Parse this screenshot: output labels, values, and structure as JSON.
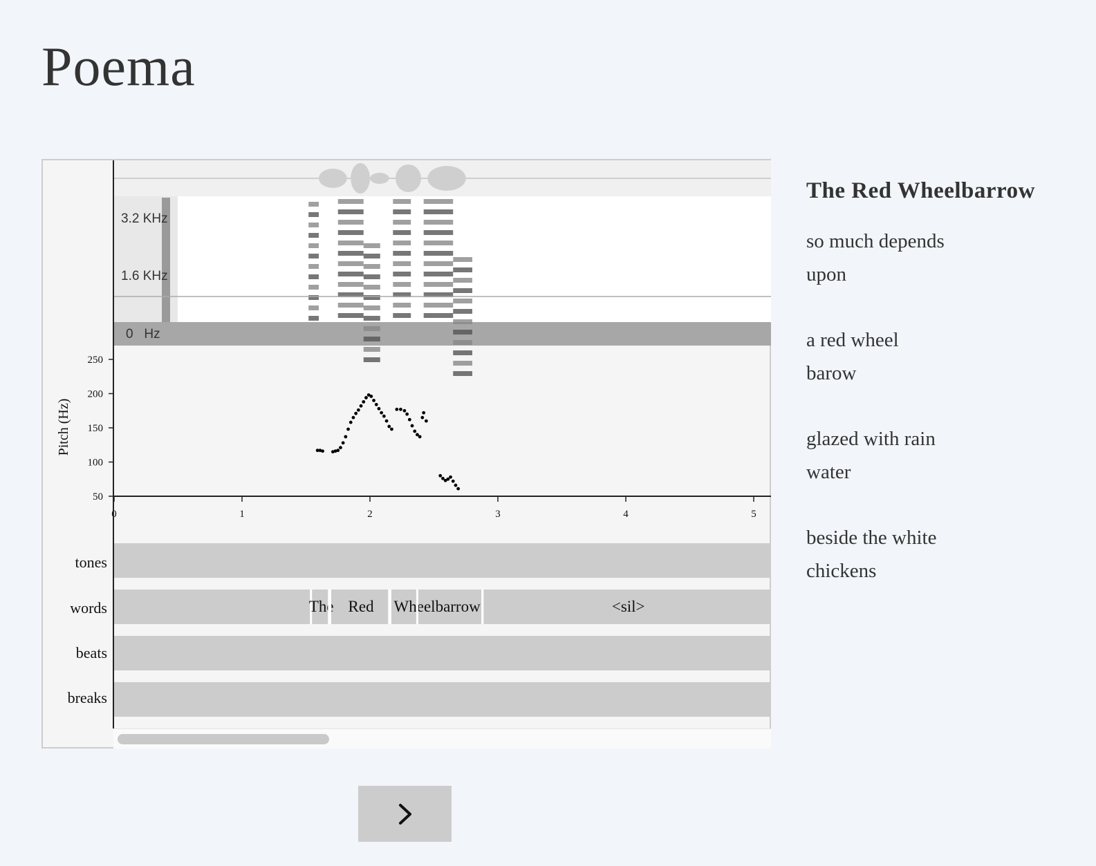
{
  "app": {
    "title": "Poema"
  },
  "spectrogram": {
    "freq_labels": [
      "3.2 KHz",
      "1.6 KHz",
      "0   Hz"
    ]
  },
  "pitch_plot": {
    "ylabel": "Pitch (Hz)",
    "yticks": [
      "250",
      "200",
      "150",
      "100",
      "50"
    ],
    "xticks": [
      "0",
      "1",
      "2",
      "3",
      "4",
      "5"
    ],
    "ylim": [
      50,
      250
    ],
    "xlim": [
      0,
      5.15
    ],
    "points": [
      [
        1.59,
        117
      ],
      [
        1.61,
        117
      ],
      [
        1.63,
        116
      ],
      [
        1.71,
        115
      ],
      [
        1.73,
        116
      ],
      [
        1.75,
        117
      ],
      [
        1.77,
        121
      ],
      [
        1.79,
        128
      ],
      [
        1.81,
        137
      ],
      [
        1.83,
        148
      ],
      [
        1.85,
        158
      ],
      [
        1.87,
        165
      ],
      [
        1.89,
        171
      ],
      [
        1.91,
        176
      ],
      [
        1.93,
        182
      ],
      [
        1.95,
        188
      ],
      [
        1.97,
        194
      ],
      [
        1.99,
        198
      ],
      [
        2.01,
        196
      ],
      [
        2.03,
        190
      ],
      [
        2.05,
        184
      ],
      [
        2.07,
        178
      ],
      [
        2.09,
        172
      ],
      [
        2.11,
        167
      ],
      [
        2.13,
        160
      ],
      [
        2.15,
        152
      ],
      [
        2.17,
        148
      ],
      [
        2.21,
        177
      ],
      [
        2.24,
        177
      ],
      [
        2.27,
        175
      ],
      [
        2.29,
        170
      ],
      [
        2.31,
        162
      ],
      [
        2.33,
        153
      ],
      [
        2.35,
        145
      ],
      [
        2.37,
        140
      ],
      [
        2.39,
        137
      ],
      [
        2.41,
        165
      ],
      [
        2.42,
        172
      ],
      [
        2.44,
        160
      ],
      [
        2.55,
        80
      ],
      [
        2.57,
        76
      ],
      [
        2.59,
        73
      ],
      [
        2.61,
        75
      ],
      [
        2.63,
        78
      ],
      [
        2.65,
        72
      ],
      [
        2.67,
        66
      ],
      [
        2.69,
        61
      ]
    ]
  },
  "tiers": {
    "labels": [
      "tones",
      "words",
      "beats",
      "breaks"
    ]
  },
  "words": [
    {
      "text": "The",
      "start": 1.55,
      "end": 1.69
    },
    {
      "text": "Red",
      "start": 1.7,
      "end": 2.16
    },
    {
      "text": "Wheelbarrow",
      "start": 2.17,
      "end": 2.88
    },
    {
      "text": "<sil>",
      "start": 2.89,
      "end": 5.15
    }
  ],
  "navigation": {
    "next_label": ">"
  },
  "poem": {
    "title": "The Red Wheelbarrow",
    "stanzas": [
      [
        "so much depends",
        "upon"
      ],
      [
        "a red wheel",
        "barow"
      ],
      [
        "glazed with rain",
        "water"
      ],
      [
        "beside the white",
        "chickens"
      ]
    ]
  },
  "colors": {
    "background": "#f2f5f9",
    "panel": "#f5f5f5",
    "tier_fill": "#cccccc",
    "text": "#333333"
  }
}
